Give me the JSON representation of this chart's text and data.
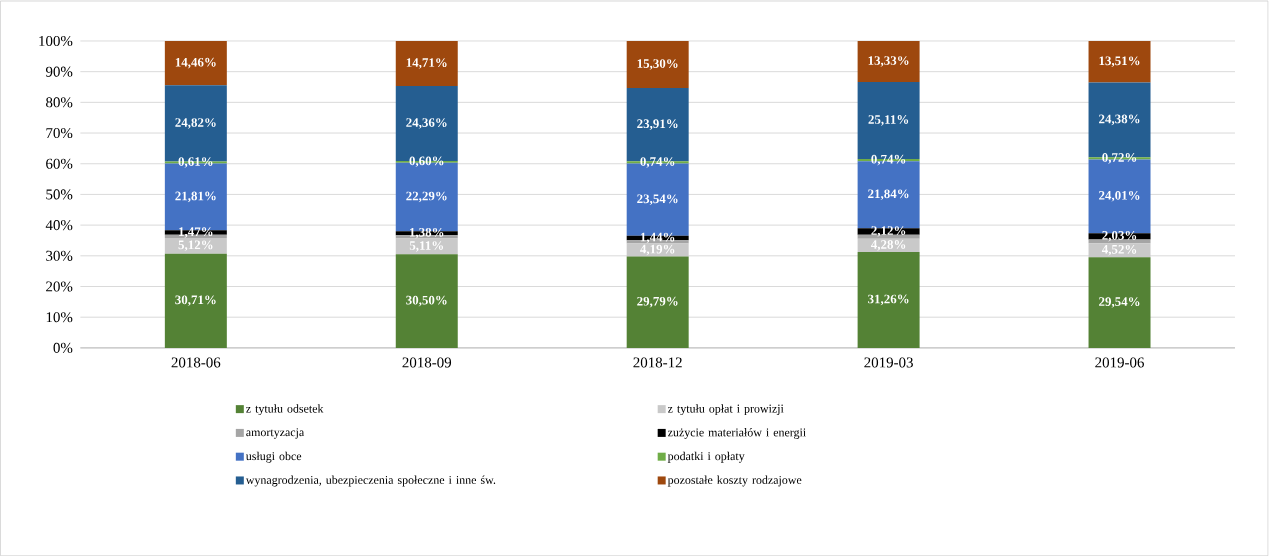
{
  "chart_data": {
    "type": "bar",
    "stacked": true,
    "categories": [
      "2018-06",
      "2018-09",
      "2018-12",
      "2019-03",
      "2019-06"
    ],
    "ylim": [
      0,
      100
    ],
    "yticks": [
      {
        "value": 0,
        "label": "0%"
      },
      {
        "value": 10,
        "label": "10%"
      },
      {
        "value": 20,
        "label": "20%"
      },
      {
        "value": 30,
        "label": "30%"
      },
      {
        "value": 40,
        "label": "40%"
      },
      {
        "value": 50,
        "label": "50%"
      },
      {
        "value": 60,
        "label": "60%"
      },
      {
        "value": 70,
        "label": "70%"
      },
      {
        "value": 80,
        "label": "80%"
      },
      {
        "value": 90,
        "label": "90%"
      },
      {
        "value": 100,
        "label": "100%"
      }
    ],
    "grid": "y",
    "legend": "bottom",
    "series": [
      {
        "name": "z tytułu odsetek",
        "color": "#548235",
        "values": [
          30.71,
          30.5,
          29.79,
          31.26,
          29.54
        ],
        "value_labels": [
          "30,71%",
          "30,50%",
          "29,79%",
          "31,26%",
          "29,54%"
        ]
      },
      {
        "name": "z tytułu opłat i prowizji",
        "color": "#c9c9c9",
        "values": [
          5.12,
          5.11,
          4.19,
          4.28,
          4.52
        ],
        "value_labels": [
          "5,12%",
          "5,11%",
          "4,19%",
          "4,28%",
          "4,52%"
        ]
      },
      {
        "name": "amortyzacja",
        "color": "#a5a5a5",
        "values": [
          1.0,
          1.05,
          1.09,
          1.32,
          1.29
        ],
        "value_labels": [
          null,
          null,
          null,
          null,
          null
        ]
      },
      {
        "name": "zużycie materiałów i energii",
        "color": "#000000",
        "values": [
          1.47,
          1.38,
          1.44,
          2.12,
          2.03
        ],
        "value_labels": [
          "1,47%",
          "1,38%",
          "1,44%",
          "2,12%",
          "2,03%"
        ]
      },
      {
        "name": "usługi obce",
        "color": "#4472c4",
        "values": [
          21.81,
          22.29,
          23.54,
          21.84,
          24.01
        ],
        "value_labels": [
          "21,81%",
          "22,29%",
          "23,54%",
          "21,84%",
          "24,01%"
        ]
      },
      {
        "name": "podatki i opłaty",
        "color": "#70ad47",
        "values": [
          0.61,
          0.6,
          0.74,
          0.74,
          0.72
        ],
        "value_labels": [
          "0,61%",
          "0,60%",
          "0,74%",
          "0,74%",
          "0,72%"
        ]
      },
      {
        "name": "wynagrodzenia, ubezpieczenia społeczne i inne św.",
        "color": "#255e91",
        "values": [
          24.82,
          24.36,
          23.91,
          25.11,
          24.38
        ],
        "value_labels": [
          "24,82%",
          "24,36%",
          "23,91%",
          "25,11%",
          "24,38%"
        ]
      },
      {
        "name": "pozostałe koszty rodzajowe",
        "color": "#9e480e",
        "values": [
          14.46,
          14.71,
          15.3,
          13.33,
          13.51
        ],
        "value_labels": [
          "14,46%",
          "14,71%",
          "15,30%",
          "13,33%",
          "13,51%"
        ]
      }
    ]
  }
}
